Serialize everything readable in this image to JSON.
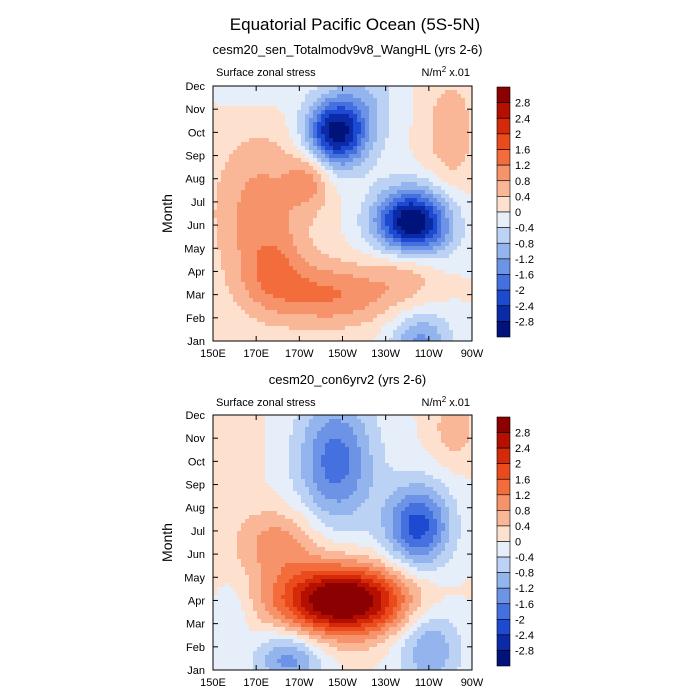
{
  "title": "Equatorial Pacific Ocean (5S-5N)",
  "colorbar": {
    "levels": [
      "2.8",
      "2.4",
      "2",
      "1.6",
      "1.2",
      "0.8",
      "0.4",
      "0",
      "-0.4",
      "-0.8",
      "-1.2",
      "-1.6",
      "-2",
      "-2.4",
      "-2.8"
    ],
    "colors": [
      "#8b0000",
      "#b40f00",
      "#d42a0a",
      "#ea4a1c",
      "#f26c3c",
      "#f6936a",
      "#f9b798",
      "#fde0cd",
      "#e6eefa",
      "#bcd2f4",
      "#93b4ec",
      "#6c93e6",
      "#4570e0",
      "#1e4ad2",
      "#0a2aa8",
      "#00137a"
    ]
  },
  "chart_data": [
    {
      "type": "heatmap",
      "subtitle": "cesm20_sen_Totalmodv9v8_WangHL (yrs 2-6)",
      "left_label": "Surface zonal stress",
      "right_label_prefix": "N/m",
      "right_label_sup": "2",
      "right_label_suffix": " x.01",
      "ylabel": "Month",
      "x_ticks": [
        "150E",
        "170E",
        "170W",
        "150W",
        "130W",
        "110W",
        "90W"
      ],
      "x_range_lon": [
        150,
        270
      ],
      "y_ticks": [
        "Jan",
        "Feb",
        "Mar",
        "Apr",
        "May",
        "Jun",
        "Jul",
        "Aug",
        "Sep",
        "Oct",
        "Nov",
        "Dec"
      ],
      "features": [
        {
          "lon": 207,
          "month": 9,
          "sx": 14,
          "sy": 1.5,
          "amp": 3.0,
          "rot": -0.45
        },
        {
          "lon": 195,
          "month": 7,
          "sx": 10,
          "sy": 1.2,
          "amp": 0.9,
          "rot": 0
        },
        {
          "lon": 242,
          "month": 5,
          "sx": 17,
          "sy": 1.5,
          "amp": 3.6,
          "rot": 0.2
        },
        {
          "lon": 246,
          "month": 0,
          "sx": 14,
          "sy": 1.3,
          "amp": 1.3,
          "rot": 0
        },
        {
          "lon": 222,
          "month": 10.5,
          "sx": 14,
          "sy": 2.2,
          "amp": 0.6,
          "rot": 0
        },
        {
          "lon": 205,
          "month": 2,
          "sx": 30,
          "sy": 1.4,
          "amp": 1.2,
          "rot": -0.5
        },
        {
          "lon": 240,
          "month": 3.5,
          "sx": 15,
          "sy": 1.5,
          "amp": 1.0,
          "rot": 0
        },
        {
          "lon": 172,
          "month": 5.5,
          "sx": 22,
          "sy": 3.5,
          "amp": 1.0,
          "rot": -0.3
        },
        {
          "lon": 178,
          "month": 3,
          "sx": 14,
          "sy": 1.5,
          "amp": 0.6,
          "rot": -0.3
        },
        {
          "lon": 260,
          "month": 9,
          "sx": 12,
          "sy": 2.5,
          "amp": 0.7,
          "rot": 0
        },
        {
          "lon": 170,
          "month": 11,
          "sx": 18,
          "sy": 1.2,
          "amp": 0.3,
          "rot": 0
        }
      ]
    },
    {
      "type": "heatmap",
      "subtitle": "cesm20_con6yrv2 (yrs 2-6)",
      "left_label": "Surface zonal stress",
      "right_label_prefix": "N/m",
      "right_label_sup": "2",
      "right_label_suffix": " x.01",
      "ylabel": "Month",
      "x_ticks": [
        "150E",
        "170E",
        "170W",
        "150W",
        "130W",
        "110W",
        "90W"
      ],
      "x_range_lon": [
        150,
        270
      ],
      "y_ticks": [
        "Jan",
        "Feb",
        "Mar",
        "Apr",
        "May",
        "Jun",
        "Jul",
        "Aug",
        "Sep",
        "Oct",
        "Nov",
        "Dec"
      ],
      "features": [
        {
          "lon": 207,
          "month": 9,
          "sx": 18,
          "sy": 2.8,
          "amp": 1.8,
          "rot": -0.3
        },
        {
          "lon": 245,
          "month": 6.2,
          "sx": 15,
          "sy": 1.8,
          "amp": 2.2,
          "rot": 0
        },
        {
          "lon": 210,
          "month": 3,
          "sx": 30,
          "sy": 1.5,
          "amp": 3.6,
          "rot": -0.45
        },
        {
          "lon": 180,
          "month": 5.5,
          "sx": 20,
          "sy": 1.5,
          "amp": 1.0,
          "rot": -0.3
        },
        {
          "lon": 250,
          "month": 1,
          "sx": 15,
          "sy": 1.8,
          "amp": 1.2,
          "rot": 0
        },
        {
          "lon": 185,
          "month": 0.5,
          "sx": 15,
          "sy": 1.2,
          "amp": 1.4,
          "rot": 0
        },
        {
          "lon": 160,
          "month": 2.5,
          "sx": 8,
          "sy": 1.5,
          "amp": 0.4,
          "rot": 0
        },
        {
          "lon": 262,
          "month": 10.5,
          "sx": 10,
          "sy": 1.5,
          "amp": 0.7,
          "rot": 0
        },
        {
          "lon": 160,
          "month": 10,
          "sx": 10,
          "sy": 2,
          "amp": 0.4,
          "rot": 0
        }
      ]
    }
  ]
}
